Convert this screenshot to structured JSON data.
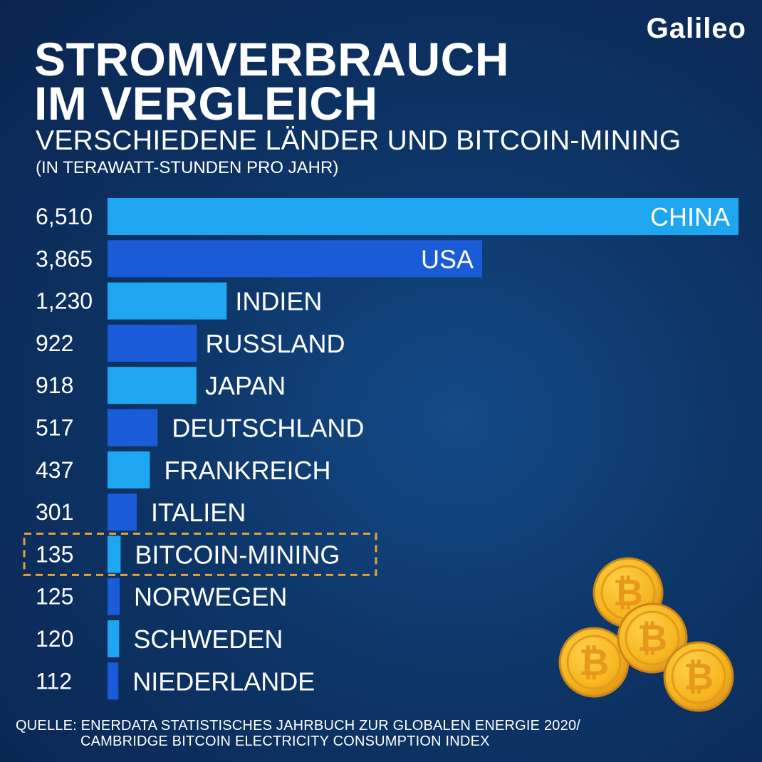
{
  "brand": {
    "logo_text": "Galileo"
  },
  "header": {
    "title_line1": "STROMVERBRAUCH",
    "title_line2": "IM VERGLEICH",
    "subtitle": "VERSCHIEDENE LÄNDER UND BITCOIN-MINING",
    "unit": "(IN TERAWATT-STUNDEN PRO JAHR)"
  },
  "source": {
    "line1": "QUELLE: ENERDATA STATISTISCHES JAHRBUCH ZUR GLOBALEN ENERGIE 2020/",
    "line2": "CAMBRIDGE BITCOIN ELECTRICITY CONSUMPTION INDEX"
  },
  "colors": {
    "light_bar": "#1fa6f0",
    "dark_bar": "#1a5cd8",
    "highlight_border": "#e3a339",
    "coin": "#f5b51e"
  },
  "icons": {
    "coins": "bitcoin-coin-icon"
  },
  "chart_data": {
    "type": "bar",
    "orientation": "horizontal",
    "title": "STROMVERBRAUCH IM VERGLEICH",
    "subtitle": "VERSCHIEDENE LÄNDER UND BITCOIN-MINING",
    "unit": "(IN TERAWATT-STUNDEN PRO JAHR)",
    "categories": [
      "CHINA",
      "USA",
      "INDIEN",
      "RUSSLAND",
      "JAPAN",
      "DEUTSCHLAND",
      "FRANKREICH",
      "ITALIEN",
      "BITCOIN-MINING",
      "NORWEGEN",
      "SCHWEDEN",
      "NIEDERLANDE"
    ],
    "values": [
      6510,
      3865,
      1230,
      922,
      918,
      517,
      437,
      301,
      135,
      125,
      120,
      112
    ],
    "value_labels": [
      "6,510",
      "3,865",
      "1,230",
      "922",
      "918",
      "517",
      "437",
      "301",
      "135",
      "125",
      "120",
      "112"
    ],
    "highlight": "BITCOIN-MINING",
    "xlim": [
      0,
      6510
    ],
    "grid": false,
    "legend": "none"
  }
}
